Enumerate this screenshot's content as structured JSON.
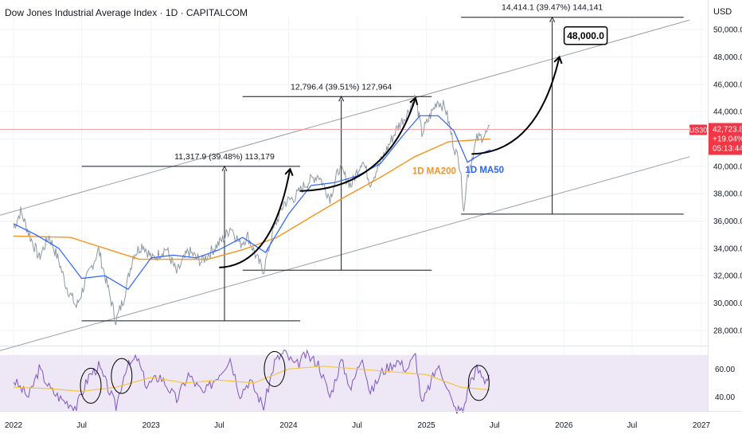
{
  "header": {
    "title": "Dow Jones Industrial Average Index · 1D · CAPITALCOM",
    "currency": "USD"
  },
  "price_badge": {
    "symbol": "US30",
    "price": "42,723.8",
    "change": "+19.04%",
    "countdown": "05:13:44"
  },
  "colors": {
    "price_line": "#8f98a3",
    "ma50": "#2962ff",
    "ma200": "#f7931a",
    "rsi_line": "#7e57c2",
    "rsi_ma": "#f5c542",
    "rsi_band": "#ede7f6",
    "badge": "#f23645"
  },
  "chart_data": [
    {
      "type": "line",
      "x_axis": {
        "labels": [
          "2022",
          "Jul",
          "2023",
          "Jul",
          "2024",
          "Jul",
          "2025",
          "Jul",
          "2026",
          "Jul",
          "2027"
        ],
        "dates": [
          "2022-01-01",
          "2022-07-01",
          "2023-01-01",
          "2023-07-01",
          "2024-01-01",
          "2024-07-01",
          "2025-01-01",
          "2025-07-01",
          "2026-01-01",
          "2026-07-01",
          "2027-01-01"
        ]
      },
      "y_axis": {
        "ylim": [
          27000,
          51000
        ],
        "ticks": [
          "28,000.0",
          "30,000.0",
          "32,000.0",
          "34,000.0",
          "36,000.0",
          "38,000.0",
          "40,000.0",
          "42,000.0",
          "44,000.0",
          "46,000.0",
          "48,000.0",
          "50,000.0"
        ],
        "tick_values": [
          28000,
          30000,
          32000,
          34000,
          36000,
          38000,
          40000,
          42000,
          44000,
          46000,
          48000,
          50000
        ]
      },
      "series": [
        {
          "key": "price",
          "points": [
            [
              "2022-01-01",
              35500
            ],
            [
              "2022-01-20",
              36700
            ],
            [
              "2022-02-15",
              34800
            ],
            [
              "2022-03-10",
              33300
            ],
            [
              "2022-04-05",
              34900
            ],
            [
              "2022-05-01",
              33100
            ],
            [
              "2022-05-20",
              31300
            ],
            [
              "2022-06-17",
              29700
            ],
            [
              "2022-07-10",
              31500
            ],
            [
              "2022-08-15",
              33900
            ],
            [
              "2022-09-05",
              31500
            ],
            [
              "2022-09-30",
              28700
            ],
            [
              "2022-10-20",
              30300
            ],
            [
              "2022-11-15",
              33500
            ],
            [
              "2022-12-10",
              34300
            ],
            [
              "2023-01-05",
              33200
            ],
            [
              "2023-02-10",
              34000
            ],
            [
              "2023-03-10",
              32200
            ],
            [
              "2023-04-10",
              33800
            ],
            [
              "2023-05-15",
              33000
            ],
            [
              "2023-06-10",
              33800
            ],
            [
              "2023-07-15",
              34800
            ],
            [
              "2023-08-01",
              35600
            ],
            [
              "2023-08-25",
              34300
            ],
            [
              "2023-09-15",
              34900
            ],
            [
              "2023-10-10",
              33200
            ],
            [
              "2023-10-27",
              32400
            ],
            [
              "2023-11-20",
              35200
            ],
            [
              "2023-12-20",
              37300
            ],
            [
              "2024-01-20",
              37800
            ],
            [
              "2024-02-15",
              38700
            ],
            [
              "2024-03-20",
              39400
            ],
            [
              "2024-04-20",
              37700
            ],
            [
              "2024-05-15",
              39900
            ],
            [
              "2024-06-15",
              38600
            ],
            [
              "2024-07-15",
              40500
            ],
            [
              "2024-08-05",
              38800
            ],
            [
              "2024-09-05",
              40500
            ],
            [
              "2024-10-15",
              42800
            ],
            [
              "2024-11-10",
              43800
            ],
            [
              "2024-12-03",
              45100
            ],
            [
              "2024-12-20",
              42400
            ],
            [
              "2025-01-30",
              44800
            ],
            [
              "2025-02-20",
              44300
            ],
            [
              "2025-03-15",
              41500
            ],
            [
              "2025-04-03",
              39800
            ],
            [
              "2025-04-08",
              36600
            ],
            [
              "2025-04-20",
              39300
            ],
            [
              "2025-05-15",
              42000
            ],
            [
              "2025-06-05",
              42300
            ],
            [
              "2025-06-20",
              42700
            ]
          ]
        },
        {
          "key": "ma50",
          "label": "1D MA50",
          "points": [
            [
              "2022-01-01",
              35800
            ],
            [
              "2022-03-01",
              35000
            ],
            [
              "2022-05-01",
              34000
            ],
            [
              "2022-07-01",
              31800
            ],
            [
              "2022-09-01",
              32000
            ],
            [
              "2022-11-01",
              31000
            ],
            [
              "2023-01-01",
              33300
            ],
            [
              "2023-03-01",
              33500
            ],
            [
              "2023-05-01",
              33300
            ],
            [
              "2023-07-01",
              33900
            ],
            [
              "2023-09-01",
              34800
            ],
            [
              "2023-11-01",
              33700
            ],
            [
              "2024-01-01",
              36500
            ],
            [
              "2024-03-01",
              38600
            ],
            [
              "2024-05-01",
              38800
            ],
            [
              "2024-07-01",
              39300
            ],
            [
              "2024-09-01",
              40200
            ],
            [
              "2024-11-01",
              42300
            ],
            [
              "2024-12-15",
              43700
            ],
            [
              "2025-02-01",
              43700
            ],
            [
              "2025-03-15",
              42600
            ],
            [
              "2025-04-20",
              40300
            ],
            [
              "2025-06-01",
              41000
            ],
            [
              "2025-06-20",
              41200
            ]
          ]
        },
        {
          "key": "ma200",
          "label": "1D MA200",
          "points": [
            [
              "2022-01-01",
              34900
            ],
            [
              "2022-06-01",
              34800
            ],
            [
              "2022-12-01",
              33200
            ],
            [
              "2023-06-01",
              33200
            ],
            [
              "2023-09-01",
              33900
            ],
            [
              "2023-12-01",
              34800
            ],
            [
              "2024-03-01",
              36300
            ],
            [
              "2024-06-01",
              37800
            ],
            [
              "2024-09-01",
              39200
            ],
            [
              "2024-12-01",
              40700
            ],
            [
              "2025-03-01",
              41800
            ],
            [
              "2025-06-20",
              42000
            ]
          ]
        }
      ],
      "channel": [
        {
          "from": [
            "2022-01-01",
            36700
          ],
          "to": [
            "2026-12-01",
            50700
          ]
        },
        {
          "from": [
            "2022-07-01",
            28200
          ],
          "to": [
            "2026-12-01",
            40700
          ]
        }
      ],
      "ranges": [
        {
          "label": "11,317.9 (39.48%) 113,179",
          "x0": "2022-07-01",
          "x1": "2024-02-01",
          "x_mark": "2023-07-15",
          "y_low": 28700,
          "y_high": 40000
        },
        {
          "label": "12,796.4 (39.51%) 127,964",
          "x0": "2023-09-01",
          "x1": "2025-01-15",
          "x_mark": "2024-05-20",
          "y_low": 32400,
          "y_high": 45100
        },
        {
          "label": "14,414.1 (39.47%) 144,141",
          "x0": "2025-04-03",
          "x1": "2026-11-15",
          "x_mark": "2025-12-01",
          "y_low": 36500,
          "y_high": 50900
        }
      ],
      "target_label": "48,000.0",
      "projections": [
        {
          "from": [
            "2023-07-01",
            32600
          ],
          "to": [
            "2024-01-05",
            39800
          ]
        },
        {
          "from": [
            "2024-02-01",
            38200
          ],
          "to": [
            "2024-12-03",
            45000
          ]
        },
        {
          "from": [
            "2025-05-01",
            40900
          ],
          "to": [
            "2025-12-20",
            48000
          ]
        }
      ]
    },
    {
      "type": "line",
      "title": "",
      "y_axis": {
        "ylim": [
          30,
          75
        ],
        "ticks": [
          "40.00",
          "60.00"
        ],
        "tick_values": [
          40,
          60
        ],
        "band": [
          30,
          70
        ]
      },
      "series": [
        {
          "key": "rsi",
          "points": [
            [
              "2022-01-01",
              52
            ],
            [
              "2022-02-10",
              40
            ],
            [
              "2022-03-10",
              60
            ],
            [
              "2022-04-10",
              45
            ],
            [
              "2022-05-10",
              38
            ],
            [
              "2022-06-17",
              33
            ],
            [
              "2022-07-20",
              55
            ],
            [
              "2022-08-15",
              62
            ],
            [
              "2022-09-30",
              33
            ],
            [
              "2022-10-25",
              60
            ],
            [
              "2022-11-25",
              68
            ],
            [
              "2022-12-20",
              48
            ],
            [
              "2023-01-25",
              55
            ],
            [
              "2023-03-10",
              38
            ],
            [
              "2023-04-10",
              56
            ],
            [
              "2023-05-20",
              42
            ],
            [
              "2023-07-10",
              60
            ],
            [
              "2023-07-30",
              68
            ],
            [
              "2023-08-25",
              42
            ],
            [
              "2023-09-20",
              52
            ],
            [
              "2023-10-27",
              33
            ],
            [
              "2023-11-25",
              65
            ],
            [
              "2023-12-20",
              72
            ],
            [
              "2024-01-20",
              62
            ],
            [
              "2024-02-15",
              70
            ],
            [
              "2024-03-20",
              64
            ],
            [
              "2024-04-20",
              40
            ],
            [
              "2024-05-20",
              66
            ],
            [
              "2024-06-15",
              46
            ],
            [
              "2024-07-15",
              70
            ],
            [
              "2024-08-05",
              42
            ],
            [
              "2024-09-05",
              58
            ],
            [
              "2024-10-15",
              66
            ],
            [
              "2024-11-10",
              60
            ],
            [
              "2024-12-03",
              70
            ],
            [
              "2024-12-20",
              34
            ],
            [
              "2025-01-30",
              62
            ],
            [
              "2025-02-20",
              52
            ],
            [
              "2025-03-15",
              32
            ],
            [
              "2025-04-08",
              30
            ],
            [
              "2025-04-25",
              50
            ],
            [
              "2025-05-15",
              60
            ],
            [
              "2025-06-05",
              52
            ],
            [
              "2025-06-20",
              58
            ]
          ]
        },
        {
          "key": "rsi_ma",
          "points": [
            [
              "2022-01-01",
              47
            ],
            [
              "2022-04-01",
              46
            ],
            [
              "2022-07-01",
              44
            ],
            [
              "2022-10-01",
              47
            ],
            [
              "2023-01-01",
              54
            ],
            [
              "2023-04-01",
              50
            ],
            [
              "2023-07-01",
              52
            ],
            [
              "2023-10-01",
              50
            ],
            [
              "2024-01-01",
              60
            ],
            [
              "2024-04-01",
              62
            ],
            [
              "2024-07-01",
              60
            ],
            [
              "2024-10-01",
              58
            ],
            [
              "2025-01-01",
              56
            ],
            [
              "2025-04-01",
              47
            ],
            [
              "2025-06-20",
              45
            ]
          ]
        }
      ],
      "circles": [
        [
          "2022-07-25",
          48
        ],
        [
          "2022-10-15",
          55
        ],
        [
          "2023-11-25",
          60
        ],
        [
          "2025-05-20",
          50
        ]
      ]
    }
  ]
}
